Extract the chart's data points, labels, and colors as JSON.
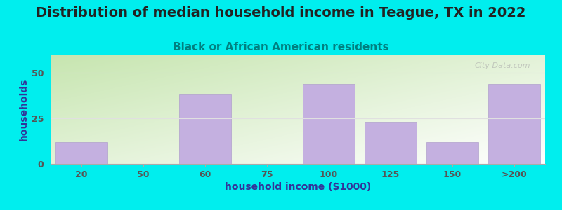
{
  "title": "Distribution of median household income in Teague, TX in 2022",
  "subtitle": "Black or African American residents",
  "xlabel": "household income ($1000)",
  "ylabel": "households",
  "categories": [
    "20",
    "50",
    "60",
    "75",
    "100",
    "125",
    "150",
    ">200"
  ],
  "values": [
    12,
    0,
    38,
    0,
    44,
    23,
    12,
    44
  ],
  "bar_color": "#c4b0e0",
  "bar_edgecolor": "#b0a0cc",
  "bg_outer": "#00eeee",
  "bg_inner_left_bottom": "#c8e6b0",
  "bg_inner_right_top": "#f0f0f0",
  "yticks": [
    0,
    25,
    50
  ],
  "ylim": [
    0,
    60
  ],
  "title_fontsize": 14,
  "subtitle_fontsize": 11,
  "label_fontsize": 10,
  "tick_fontsize": 9,
  "title_color": "#222222",
  "subtitle_color": "#008080",
  "axis_label_color": "#333399",
  "tick_color": "#555555",
  "watermark": "City-Data.com",
  "grid_color": "#e0e0e0"
}
